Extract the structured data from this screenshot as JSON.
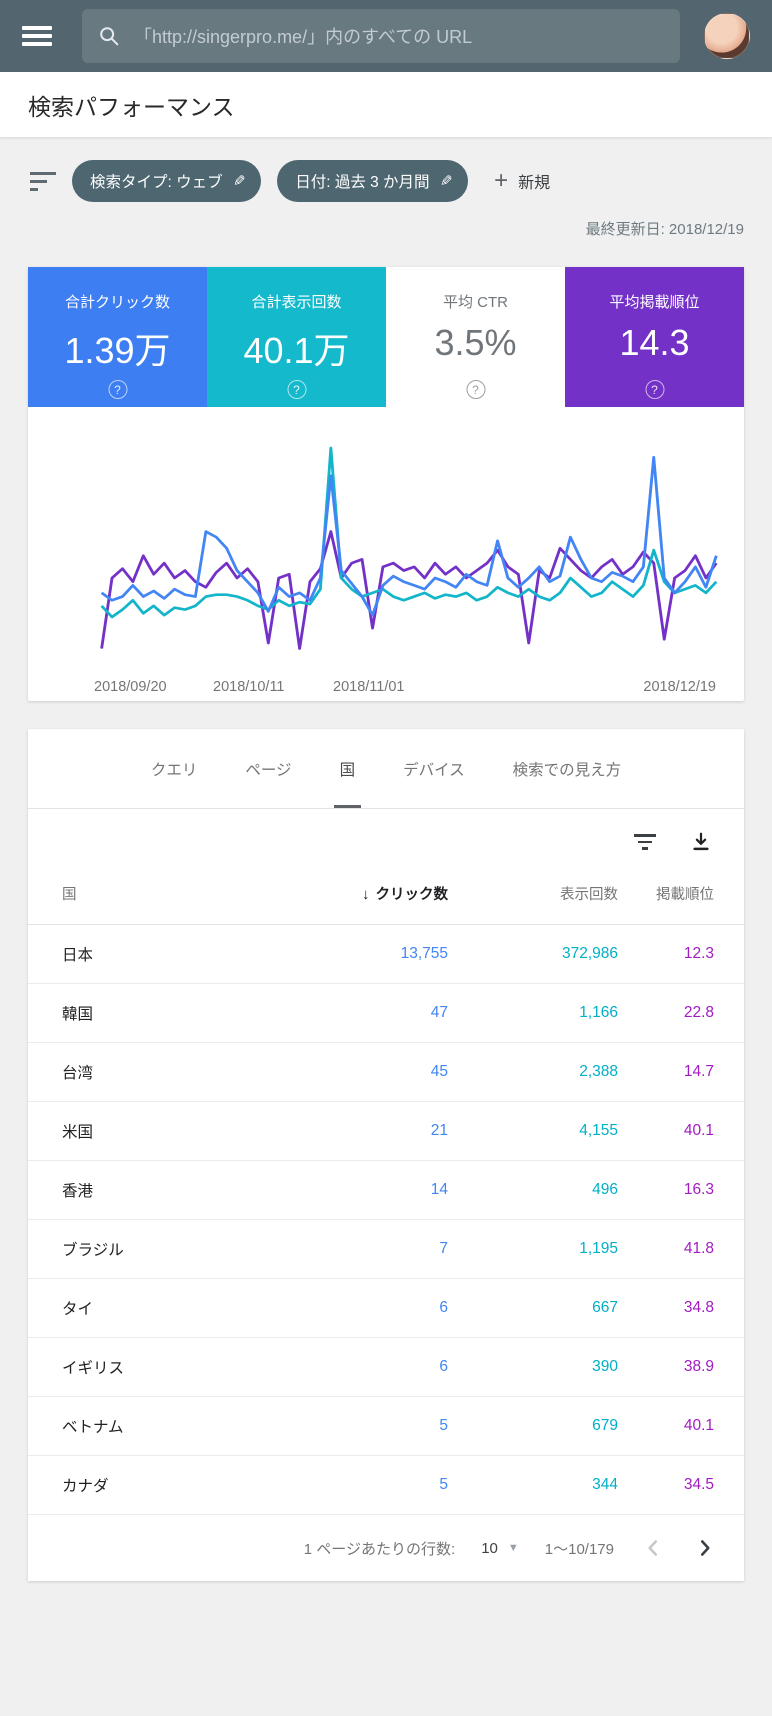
{
  "topbar": {
    "search_placeholder": "「http://singerpro.me/」内のすべての URL"
  },
  "header": {
    "title": "検索パフォーマンス"
  },
  "filters": {
    "chips": [
      {
        "label": "検索タイプ: ウェブ"
      },
      {
        "label": "日付: 過去 3 か月間"
      }
    ],
    "new_label": "新規",
    "last_updated": "最終更新日: 2018/12/19"
  },
  "metrics": {
    "cards": [
      {
        "label": "合計クリック数",
        "value": "1.39万",
        "color": "#3d7ef2",
        "text": "light"
      },
      {
        "label": "合計表示回数",
        "value": "40.1万",
        "color": "#14b9cc",
        "text": "light"
      },
      {
        "label": "平均 CTR",
        "value": "3.5%",
        "color": "#ffffff",
        "text": "dark"
      },
      {
        "label": "平均掲載順位",
        "value": "14.3",
        "color": "#7431c8",
        "text": "light"
      }
    ],
    "help_glyph": "?"
  },
  "chart_data": {
    "type": "line",
    "x_range": [
      "2018/09/20",
      "2018/12/19"
    ],
    "x_labels": [
      "2018/09/20",
      "2018/10/11",
      "2018/11/01",
      "2018/12/19"
    ],
    "legend_position": "none",
    "grid": false,
    "series": [
      {
        "name": "平均掲載順位",
        "color": "#7431c8",
        "values": [
          -8,
          30,
          35,
          28,
          42,
          32,
          38,
          30,
          34,
          28,
          25,
          33,
          38,
          30,
          35,
          28,
          -5,
          30,
          32,
          -8,
          28,
          35,
          55,
          30,
          38,
          40,
          3,
          36,
          38,
          34,
          36,
          30,
          38,
          32,
          36,
          30,
          34,
          38,
          45,
          36,
          32,
          -5,
          34,
          30,
          46,
          40,
          34,
          30,
          36,
          40,
          32,
          36,
          44,
          38,
          -3,
          30,
          34,
          42,
          30,
          38
        ]
      },
      {
        "name": "合計表示回数",
        "color": "#12b5c9",
        "values": [
          15,
          9,
          13,
          18,
          11,
          15,
          10,
          14,
          13,
          15,
          20,
          21,
          21,
          20,
          18,
          15,
          13,
          18,
          15,
          17,
          16,
          24,
          100,
          30,
          24,
          20,
          22,
          24,
          20,
          18,
          20,
          22,
          19,
          21,
          20,
          22,
          18,
          20,
          25,
          22,
          20,
          24,
          20,
          18,
          22,
          30,
          25,
          20,
          22,
          28,
          24,
          20,
          26,
          45,
          28,
          22,
          24,
          26,
          22,
          28
        ]
      },
      {
        "name": "合計クリック数",
        "color": "#4285f4",
        "values": [
          22,
          18,
          20,
          26,
          20,
          23,
          19,
          24,
          21,
          20,
          55,
          52,
          46,
          34,
          28,
          22,
          12,
          25,
          20,
          22,
          18,
          30,
          85,
          34,
          27,
          20,
          10,
          26,
          31,
          28,
          26,
          24,
          30,
          28,
          25,
          32,
          28,
          26,
          50,
          30,
          25,
          30,
          36,
          28,
          31,
          52,
          40,
          30,
          28,
          33,
          31,
          28,
          36,
          95,
          30,
          22,
          28,
          36,
          25,
          42
        ]
      }
    ]
  },
  "tabs": {
    "items": [
      {
        "label": "クエリ",
        "active": false
      },
      {
        "label": "ページ",
        "active": false
      },
      {
        "label": "国",
        "active": true
      },
      {
        "label": "デバイス",
        "active": false
      },
      {
        "label": "検索での見え方",
        "active": false
      }
    ]
  },
  "table": {
    "columns": [
      "国",
      "クリック数",
      "表示回数",
      "掲載順位"
    ],
    "sort_column": "クリック数",
    "sort_direction": "desc",
    "sort_glyph": "↓",
    "rows": [
      {
        "country": "日本",
        "clicks": "13,755",
        "impressions": "372,986",
        "position": "12.3"
      },
      {
        "country": "韓国",
        "clicks": "47",
        "impressions": "1,166",
        "position": "22.8"
      },
      {
        "country": "台湾",
        "clicks": "45",
        "impressions": "2,388",
        "position": "14.7"
      },
      {
        "country": "米国",
        "clicks": "21",
        "impressions": "4,155",
        "position": "40.1"
      },
      {
        "country": "香港",
        "clicks": "14",
        "impressions": "496",
        "position": "16.3"
      },
      {
        "country": "ブラジル",
        "clicks": "7",
        "impressions": "1,195",
        "position": "41.8"
      },
      {
        "country": "タイ",
        "clicks": "6",
        "impressions": "667",
        "position": "34.8"
      },
      {
        "country": "イギリス",
        "clicks": "6",
        "impressions": "390",
        "position": "38.9"
      },
      {
        "country": "ベトナム",
        "clicks": "5",
        "impressions": "679",
        "position": "40.1"
      },
      {
        "country": "カナダ",
        "clicks": "5",
        "impressions": "344",
        "position": "34.5"
      }
    ]
  },
  "pagination": {
    "rows_per_page_label": "1 ページあたりの行数:",
    "rows_per_page": "10",
    "range": "1～10/179"
  },
  "colors": {
    "topbar_bg": "#53666f",
    "chip_bg": "#4d6670",
    "clicks": "#4285f4",
    "impressions": "#00b0c7",
    "position_table": "#a31bc2",
    "page_bg": "#f0f0f1"
  }
}
